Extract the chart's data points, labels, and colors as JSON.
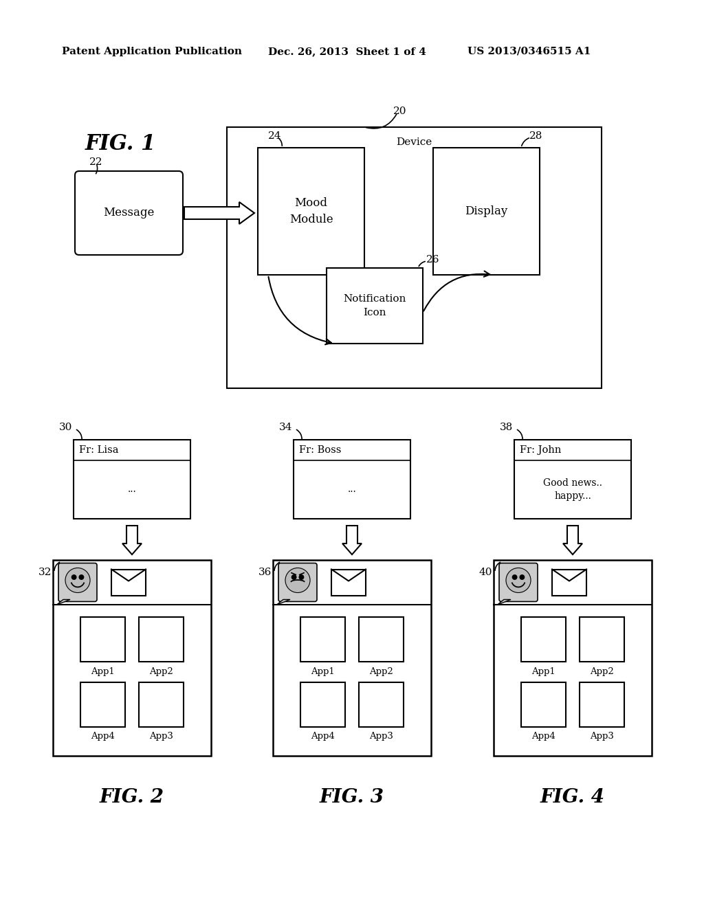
{
  "bg_color": "#ffffff",
  "header_text1": "Patent Application Publication",
  "header_text2": "Dec. 26, 2013  Sheet 1 of 4",
  "header_text3": "US 2013/0346515 A1",
  "fig1_label": "FIG. 1",
  "fig1_device_label": "Device",
  "fig1_num20": "20",
  "fig1_num22": "22",
  "fig1_num24": "24",
  "fig1_num26": "26",
  "fig1_num28": "28",
  "fig1_message": "Message",
  "fig1_mood": "Mood\nModule",
  "fig1_notification": "Notification\nIcon",
  "fig1_display": "Display",
  "fig2_label": "FIG. 2",
  "fig3_label": "FIG. 3",
  "fig4_label": "FIG. 4",
  "fig2_num30": "30",
  "fig2_num32": "32",
  "fig3_num34": "34",
  "fig3_num36": "36",
  "fig4_num38": "38",
  "fig4_num40": "40",
  "msg2_from": "Fr: Lisa",
  "msg2_body": "...",
  "msg3_from": "Fr: Boss",
  "msg3_body": "...",
  "msg4_from": "Fr: John",
  "msg4_body": "Good news..\nhappy...",
  "app_labels_row1": [
    "App1",
    "App2"
  ],
  "app_labels_row2": [
    "App4",
    "App3"
  ]
}
